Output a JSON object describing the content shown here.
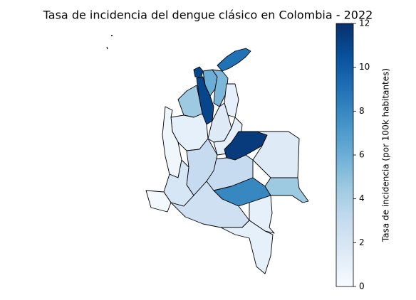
{
  "chart_data": {
    "type": "choropleth",
    "title": "Tasa de incidencia del dengue clásico en Colombia - 2022",
    "colorbar_label": "Tasa de incidencia (por 100k habitantes)",
    "cmap": "Blues",
    "clim": [
      0,
      12
    ],
    "cticks": [
      0,
      2,
      4,
      6,
      8,
      10,
      12
    ],
    "values": [
      9,
      11,
      6,
      5.5,
      11,
      4.5,
      1,
      1,
      1.5,
      1,
      11.5,
      1.5,
      3,
      4.5,
      8,
      0.5,
      3,
      2,
      0.3,
      2.5,
      1,
      1
    ]
  }
}
